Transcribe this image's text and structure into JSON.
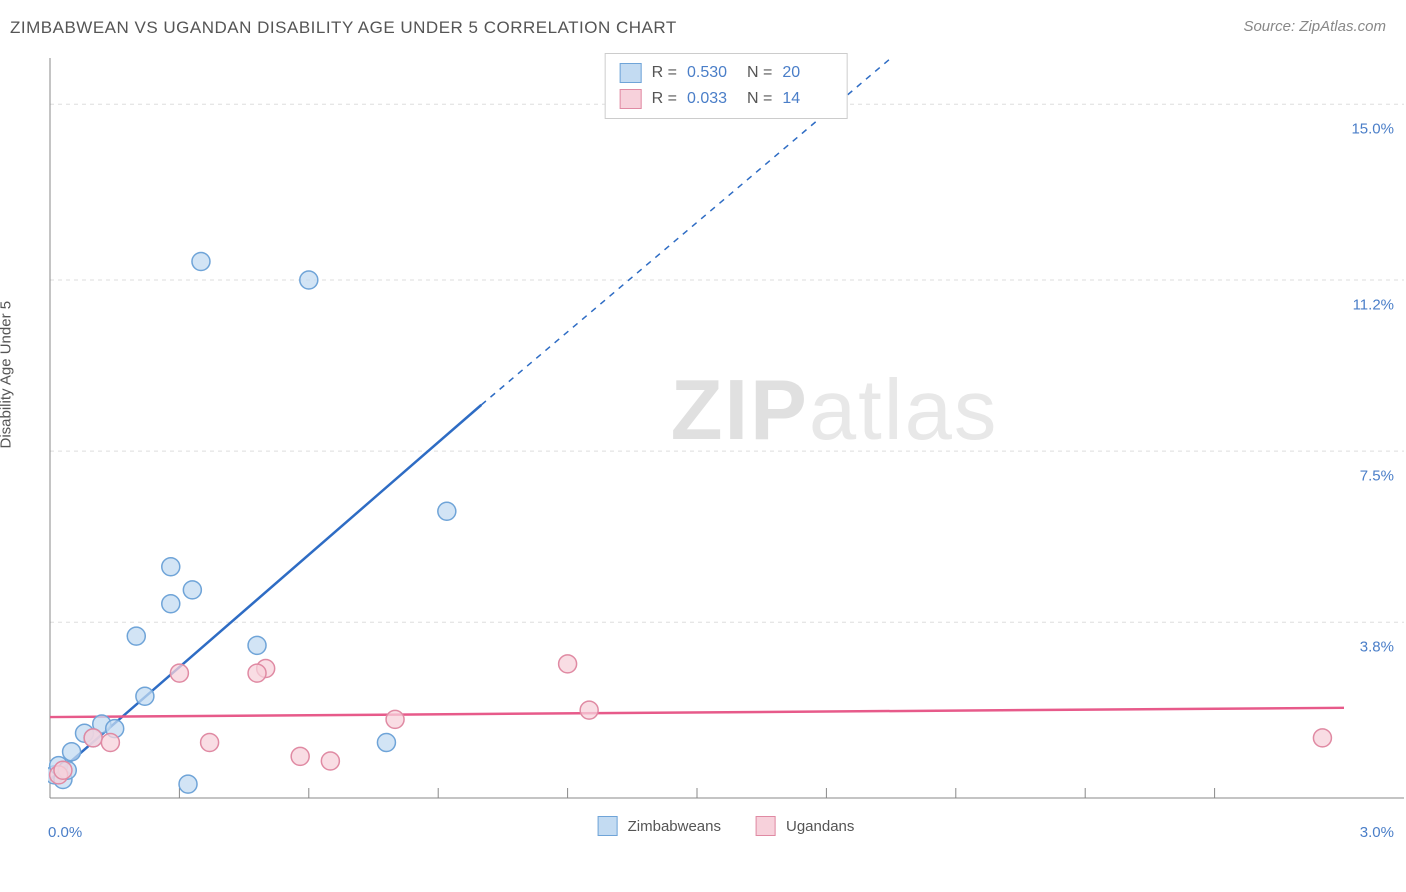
{
  "title": "ZIMBABWEAN VS UGANDAN DISABILITY AGE UNDER 5 CORRELATION CHART",
  "source": "Source: ZipAtlas.com",
  "ylabel": "Disability Age Under 5",
  "watermark_prefix": "ZIP",
  "watermark_suffix": "atlas",
  "chart": {
    "type": "scatter",
    "background_color": "#ffffff",
    "grid_color": "#dddddd",
    "axis_color": "#888888",
    "xlim": [
      0.0,
      3.0
    ],
    "ylim": [
      0.0,
      16.0
    ],
    "x_axis_label_min": "0.0%",
    "x_axis_label_max": "3.0%",
    "y_ticks": [
      {
        "v": 3.8,
        "label": "3.8%"
      },
      {
        "v": 7.5,
        "label": "7.5%"
      },
      {
        "v": 11.2,
        "label": "11.2%"
      },
      {
        "v": 15.0,
        "label": "15.0%"
      }
    ],
    "x_minor_ticks": [
      0.3,
      0.6,
      0.9,
      1.2,
      1.5,
      1.8,
      2.1,
      2.4,
      2.7
    ],
    "marker_radius": 9,
    "marker_stroke_width": 1.5,
    "series": [
      {
        "name": "Zimbabweans",
        "fill": "#c3dbf2",
        "stroke": "#6fa4d8",
        "line_color": "#2e6cc4",
        "line_width": 2.5,
        "R": "0.530",
        "N": "20",
        "trend_solid": {
          "x1": 0.0,
          "y1": 0.4,
          "x2": 1.0,
          "y2": 8.5
        },
        "trend_dashed": {
          "x1": 1.0,
          "y1": 8.5,
          "x2": 1.95,
          "y2": 16.0
        },
        "points": [
          {
            "x": 0.01,
            "y": 0.5
          },
          {
            "x": 0.02,
            "y": 0.7
          },
          {
            "x": 0.03,
            "y": 0.4
          },
          {
            "x": 0.04,
            "y": 0.6
          },
          {
            "x": 0.05,
            "y": 1.0
          },
          {
            "x": 0.08,
            "y": 1.4
          },
          {
            "x": 0.12,
            "y": 1.6
          },
          {
            "x": 0.1,
            "y": 1.3
          },
          {
            "x": 0.15,
            "y": 1.5
          },
          {
            "x": 0.22,
            "y": 2.2
          },
          {
            "x": 0.28,
            "y": 4.2
          },
          {
            "x": 0.32,
            "y": 0.3
          },
          {
            "x": 0.2,
            "y": 3.5
          },
          {
            "x": 0.28,
            "y": 5.0
          },
          {
            "x": 0.33,
            "y": 4.5
          },
          {
            "x": 0.35,
            "y": 11.6
          },
          {
            "x": 0.48,
            "y": 3.3
          },
          {
            "x": 0.6,
            "y": 11.2
          },
          {
            "x": 0.78,
            "y": 1.2
          },
          {
            "x": 0.92,
            "y": 6.2
          }
        ]
      },
      {
        "name": "Ugandans",
        "fill": "#f7d1db",
        "stroke": "#e08aa3",
        "line_color": "#e75a8a",
        "line_width": 2.5,
        "R": "0.033",
        "N": "14",
        "trend_solid": {
          "x1": 0.0,
          "y1": 1.75,
          "x2": 3.0,
          "y2": 1.95
        },
        "points": [
          {
            "x": 0.02,
            "y": 0.5
          },
          {
            "x": 0.03,
            "y": 0.6
          },
          {
            "x": 0.1,
            "y": 1.3
          },
          {
            "x": 0.14,
            "y": 1.2
          },
          {
            "x": 0.3,
            "y": 2.7
          },
          {
            "x": 0.37,
            "y": 1.2
          },
          {
            "x": 0.5,
            "y": 2.8
          },
          {
            "x": 0.48,
            "y": 2.7
          },
          {
            "x": 0.58,
            "y": 0.9
          },
          {
            "x": 0.65,
            "y": 0.8
          },
          {
            "x": 0.8,
            "y": 1.7
          },
          {
            "x": 1.2,
            "y": 2.9
          },
          {
            "x": 1.25,
            "y": 1.9
          },
          {
            "x": 2.95,
            "y": 1.3
          }
        ]
      }
    ],
    "legend_labels": [
      "Zimbabweans",
      "Ugandans"
    ],
    "label_color": "#555555",
    "value_color": "#4a7ec8",
    "title_fontsize": 17,
    "label_fontsize": 15
  }
}
